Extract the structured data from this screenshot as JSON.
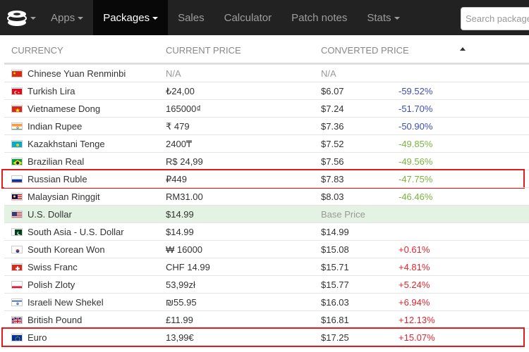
{
  "navbar": {
    "logo_icon": "coin-stack-icon",
    "items": [
      {
        "label": "Apps",
        "dropdown": true
      },
      {
        "label": "Packages",
        "dropdown": true,
        "active": true
      },
      {
        "label": "Sales"
      },
      {
        "label": "Calculator"
      },
      {
        "label": "Patch notes"
      },
      {
        "label": "Stats",
        "dropdown": true
      }
    ],
    "search_placeholder": "Search packages"
  },
  "table": {
    "headers": {
      "currency": "CURRENCY",
      "current_price": "CURRENT PRICE",
      "converted_price": "CONVERTED PRICE"
    },
    "rows": [
      {
        "flag": "cn",
        "currency": "Chinese Yuan Renminbi",
        "price": "N/A",
        "converted": "N/A",
        "diff": "",
        "style": "muted"
      },
      {
        "flag": "tr",
        "currency": "Turkish Lira",
        "price": "₺24,00",
        "converted": "$6.07",
        "diff": "-59.52%",
        "style": "neg-strong"
      },
      {
        "flag": "vn",
        "currency": "Vietnamese Dong",
        "price": "165000₫",
        "converted": "$7.24",
        "diff": "-51.70%",
        "style": "neg-strong"
      },
      {
        "flag": "in",
        "currency": "Indian Rupee",
        "price": "₹ 479",
        "converted": "$7.36",
        "diff": "-50.90%",
        "style": "neg-strong"
      },
      {
        "flag": "kz",
        "currency": "Kazakhstani Tenge",
        "price": "2400₸",
        "converted": "$7.52",
        "diff": "-49.85%",
        "style": "neg-green"
      },
      {
        "flag": "br",
        "currency": "Brazilian Real",
        "price": "R$ 24,99",
        "converted": "$7.56",
        "diff": "-49.56%",
        "style": "neg-green"
      },
      {
        "flag": "ru",
        "currency": "Russian Ruble",
        "price": "₽449",
        "converted": "$7.83",
        "diff": "-47.75%",
        "style": "neg-green",
        "highlight": true
      },
      {
        "flag": "my",
        "currency": "Malaysian Ringgit",
        "price": "RM31.00",
        "converted": "$8.03",
        "diff": "-46.46%",
        "style": "neg-green"
      },
      {
        "flag": "us",
        "currency": "U.S. Dollar",
        "price": "$14.99",
        "converted": "Base Price",
        "diff": "",
        "style": "base"
      },
      {
        "flag": "pk",
        "currency": "South Asia - U.S. Dollar",
        "price": "$14.99",
        "converted": "$14.99",
        "diff": "",
        "style": ""
      },
      {
        "flag": "kr",
        "currency": "South Korean Won",
        "price": "₩ 16000",
        "converted": "$15.08",
        "diff": "+0.61%",
        "style": "pos"
      },
      {
        "flag": "ch",
        "currency": "Swiss Franc",
        "price": "CHF 14.99",
        "converted": "$15.71",
        "diff": "+4.81%",
        "style": "pos"
      },
      {
        "flag": "pl",
        "currency": "Polish Zloty",
        "price": "53,99zł",
        "converted": "$15.77",
        "diff": "+5.24%",
        "style": "pos"
      },
      {
        "flag": "il",
        "currency": "Israeli New Shekel",
        "price": "₪55.95",
        "converted": "$16.03",
        "diff": "+6.94%",
        "style": "pos"
      },
      {
        "flag": "gb",
        "currency": "British Pound",
        "price": "£11.99",
        "converted": "$16.81",
        "diff": "+12.13%",
        "style": "pos"
      },
      {
        "flag": "eu",
        "currency": "Euro",
        "price": "13,99€",
        "converted": "$17.25",
        "diff": "+15.07%",
        "style": "pos",
        "highlight": true
      }
    ]
  },
  "colors": {
    "navbar_bg": "#222222",
    "active_nav_bg": "#080808",
    "base_row_bg": "#e3f2e2",
    "highlight_border": "#e31b1b",
    "neg_strong": "#3a4fb7",
    "neg_green": "#7ab53f",
    "pos": "#e0262f"
  }
}
